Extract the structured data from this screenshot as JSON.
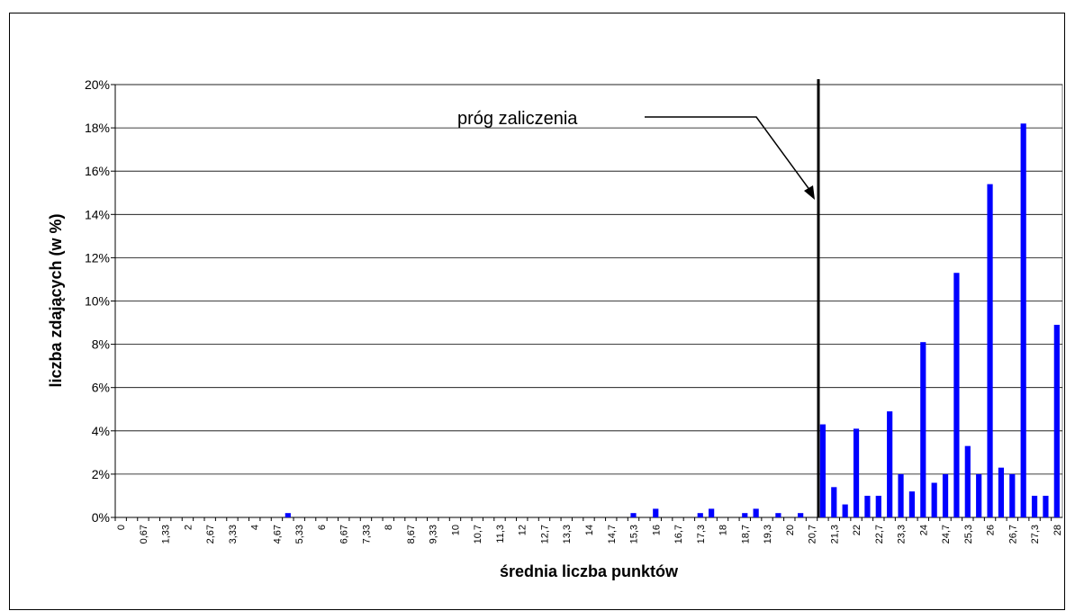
{
  "chart_data": {
    "type": "bar",
    "x_label": "średnia liczba punktów",
    "y_label": "liczba zdających  (w %)",
    "annotation": "próg zaliczenia",
    "categories": [
      "0",
      null,
      "0,67",
      null,
      "1,33",
      null,
      "2",
      null,
      "2,67",
      null,
      "3,33",
      null,
      "4",
      null,
      "4,67",
      null,
      "5,33",
      null,
      "6",
      null,
      "6,67",
      null,
      "7,33",
      null,
      "8",
      null,
      "8,67",
      null,
      "9,33",
      null,
      "10",
      null,
      "10,7",
      null,
      "11,3",
      null,
      "12",
      null,
      "12,7",
      null,
      "13,3",
      null,
      "14",
      null,
      "14,7",
      null,
      "15,3",
      null,
      "16",
      null,
      "16,7",
      null,
      "17,3",
      null,
      "18",
      null,
      "18,7",
      null,
      "19,3",
      null,
      "20",
      null,
      "20,7",
      null,
      "21,3",
      null,
      "22",
      null,
      "22,7",
      null,
      "23,3",
      null,
      "24",
      null,
      "24,7",
      null,
      "25,3",
      null,
      "26",
      null,
      "26,7",
      null,
      "27,3",
      null,
      "28"
    ],
    "values": [
      0,
      0,
      0,
      0,
      0,
      0,
      0,
      0,
      0,
      0,
      0,
      0,
      0,
      0,
      0,
      0.2,
      0,
      0,
      0,
      0,
      0,
      0,
      0,
      0,
      0,
      0,
      0,
      0,
      0,
      0,
      0,
      0,
      0,
      0,
      0,
      0,
      0,
      0,
      0,
      0,
      0,
      0,
      0,
      0,
      0,
      0,
      0.2,
      0,
      0.4,
      0,
      0,
      0,
      0.2,
      0.4,
      0,
      0,
      0.2,
      0.4,
      0,
      0.2,
      0,
      0.2,
      0,
      4.3,
      1.4,
      0.6,
      4.1,
      1.0,
      1.0,
      4.9,
      2.0,
      1.2,
      8.1,
      1.6,
      2.0,
      11.3,
      3.3,
      2.0,
      15.4,
      2.3,
      2.0,
      18.2,
      1.0,
      1.0,
      8.9
    ],
    "color": "#0000ff",
    "ylim": [
      0,
      20
    ],
    "yticks": [
      {
        "value": 0,
        "label": "0%"
      },
      {
        "value": 2,
        "label": "2%"
      },
      {
        "value": 4,
        "label": "4%"
      },
      {
        "value": 6,
        "label": "6%"
      },
      {
        "value": 8,
        "label": "8%"
      },
      {
        "value": 10,
        "label": "10%"
      },
      {
        "value": 12,
        "label": "12%"
      },
      {
        "value": 14,
        "label": "14%"
      },
      {
        "value": 16,
        "label": "16%"
      },
      {
        "value": 18,
        "label": "18%"
      },
      {
        "value": 20,
        "label": "20%"
      }
    ],
    "grid": true
  }
}
